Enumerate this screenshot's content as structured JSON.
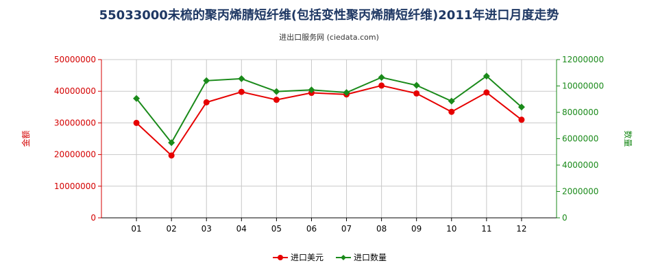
{
  "chart_data": {
    "type": "line",
    "title": "55033000未梳的聚丙烯腈短纤维(包括变性聚丙烯腈短纤维)2011年进口月度走势",
    "subtitle": "进出口服务网 (ciedata.com)",
    "categories": [
      "01",
      "02",
      "03",
      "04",
      "05",
      "06",
      "07",
      "08",
      "09",
      "10",
      "11",
      "12"
    ],
    "y_left": {
      "label": "金额",
      "range": [
        0,
        50000000
      ],
      "ticks": [
        "0",
        "10000000",
        "20000000",
        "30000000",
        "40000000",
        "50000000"
      ]
    },
    "y_right": {
      "label": "数量",
      "range": [
        0,
        12000000
      ],
      "ticks": [
        "0",
        "2000000",
        "4000000",
        "6000000",
        "8000000",
        "10000000",
        "12000000"
      ]
    },
    "series": [
      {
        "name": "进口美元",
        "axis": "left",
        "color": "#e60000",
        "values": [
          30000000,
          19700000,
          36500000,
          39800000,
          37300000,
          39500000,
          39000000,
          41800000,
          39300000,
          33500000,
          39600000,
          31000000
        ]
      },
      {
        "name": "进口数量",
        "axis": "right",
        "color": "#1a8a1a",
        "values": [
          9050000,
          5700000,
          10400000,
          10550000,
          9580000,
          9700000,
          9500000,
          10650000,
          10050000,
          8850000,
          10750000,
          8400000
        ]
      }
    ],
    "grid": true,
    "legend": "bottom"
  }
}
